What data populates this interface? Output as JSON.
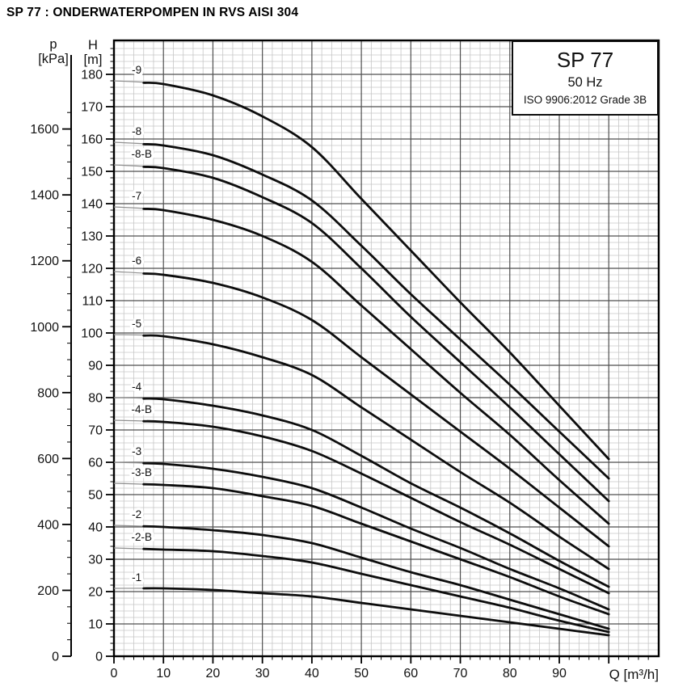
{
  "page": {
    "title": "SP 77 : ONDERWATERPOMPEN IN RVS AISI 304"
  },
  "axes": {
    "pressure": {
      "title": "p",
      "unit": "[kPa]"
    },
    "head": {
      "title": "H",
      "unit": "[m]"
    },
    "flow": {
      "title": "Q [m³/h]"
    }
  },
  "chart_data": {
    "type": "line",
    "title": "SP 77",
    "subtitle": "50 Hz",
    "standard": "ISO 9906:2012 Grade 3B",
    "xlabel": "Q [m³/h]",
    "ylabel_left": "p [kPa]",
    "ylabel_right": "H [m]",
    "xlim": [
      0,
      110
    ],
    "H_lim": [
      0,
      190
    ],
    "p_lim": [
      0,
      1870
    ],
    "grid": "major every 10 units, minor every 2 units (both axes)",
    "legend_position": "top-right box",
    "x_ticks_Q": [
      0,
      10,
      20,
      30,
      40,
      50,
      60,
      70,
      80,
      90
    ],
    "H_ticks_m": [
      0,
      10,
      20,
      30,
      40,
      50,
      60,
      70,
      80,
      90,
      100,
      110,
      120,
      130,
      140,
      150,
      160,
      170,
      180
    ],
    "p_ticks_kPa": [
      0,
      200,
      400,
      600,
      800,
      1000,
      1200,
      1400,
      1600
    ],
    "minor_step_Q": 2,
    "minor_step_H": 2,
    "minor_step_p": 50,
    "kPa_per_m_head": 9.81,
    "thin_segment_Q_range": [
      0,
      6
    ],
    "x_Q_m3h": [
      0,
      10,
      20,
      30,
      40,
      50,
      60,
      70,
      80,
      90,
      100
    ],
    "series": [
      {
        "name": "-9",
        "H_m": [
          178,
          177,
          173.5,
          167,
          157.5,
          141.5,
          125.5,
          109.5,
          94,
          77.5,
          61
        ]
      },
      {
        "name": "-8",
        "H_m": [
          159,
          158,
          155,
          149,
          141,
          127,
          112,
          98,
          84,
          69.5,
          55
        ]
      },
      {
        "name": "-8-B",
        "H_m": [
          152,
          151,
          148,
          142,
          134,
          120,
          105,
          91,
          77,
          62.5,
          48
        ]
      },
      {
        "name": "-7",
        "H_m": [
          139,
          138,
          135,
          130,
          122,
          108.5,
          95,
          81.5,
          68.5,
          54.5,
          41
        ]
      },
      {
        "name": "-6",
        "H_m": [
          119,
          118,
          115.5,
          111,
          104,
          92.5,
          81,
          69.5,
          58,
          46,
          34
        ]
      },
      {
        "name": "-5",
        "H_m": [
          99.5,
          99,
          96.5,
          92.5,
          87,
          77,
          67,
          57,
          47.5,
          37,
          27
        ]
      },
      {
        "name": "-4",
        "H_m": [
          80,
          79.5,
          77.5,
          74.5,
          70,
          62,
          53.5,
          46,
          38,
          29.5,
          21.5
        ]
      },
      {
        "name": "-4-B",
        "H_m": [
          73,
          72.5,
          71,
          68,
          63.5,
          56.5,
          49,
          41.5,
          34.5,
          27,
          19.5
        ]
      },
      {
        "name": "-3",
        "H_m": [
          60,
          59.5,
          58,
          55.5,
          52,
          46,
          39.5,
          33.5,
          27,
          21,
          14.5
        ]
      },
      {
        "name": "-3-B",
        "H_m": [
          53.5,
          53,
          52,
          49.5,
          46.5,
          41,
          35.5,
          30,
          24.5,
          18.5,
          13
        ]
      },
      {
        "name": "-2",
        "H_m": [
          40.5,
          40,
          39,
          37.5,
          35,
          30.5,
          26,
          22,
          17.5,
          13,
          8.5
        ]
      },
      {
        "name": "-2-B",
        "H_m": [
          33.5,
          33,
          32.5,
          31,
          29,
          25.5,
          22,
          18.5,
          15,
          11,
          7.5
        ]
      },
      {
        "name": "-1",
        "H_m": [
          21,
          21,
          20.5,
          19.5,
          18.5,
          16.5,
          14.5,
          12.5,
          10.5,
          8.5,
          6.5
        ]
      }
    ]
  },
  "colors": {
    "curve": "#0d0d0d",
    "curve_thin": "#8f8f8f",
    "grid_minor": "#c6c6c6",
    "grid_major": "#4f4f4f",
    "axis": "#000000",
    "text": "#111111"
  }
}
